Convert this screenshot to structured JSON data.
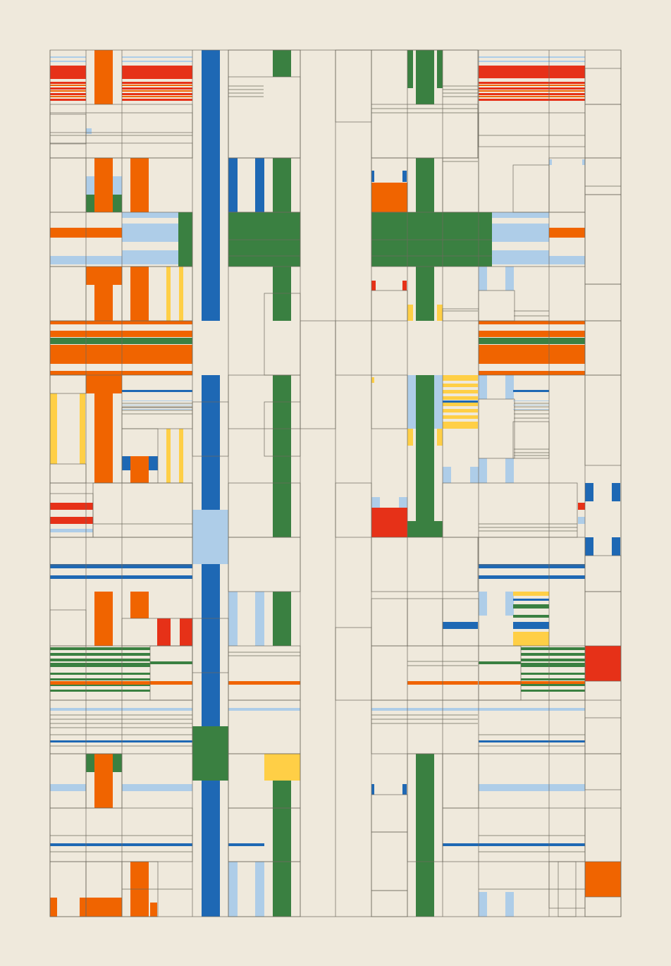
{
  "artwork": {
    "style": "geometric-plaid-abstract",
    "colors": {
      "background": "#EFE9DC",
      "orange": "#F06400",
      "red": "#E63118",
      "blue": "#1E68B4",
      "light_blue": "#AECDE8",
      "green": "#3A8041",
      "yellow": "#FFCF46",
      "line": "#6E6A5E"
    }
  }
}
